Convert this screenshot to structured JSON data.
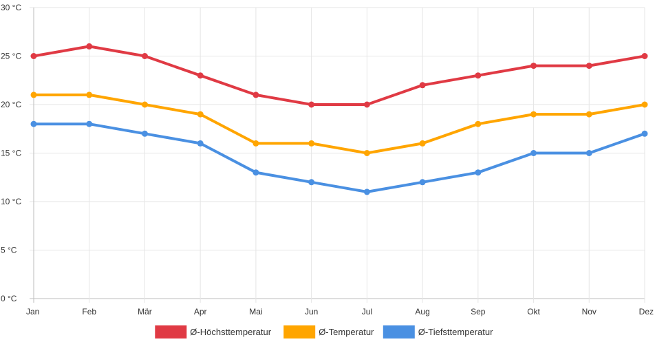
{
  "chart_data": {
    "type": "line",
    "title": "",
    "xlabel": "",
    "ylabel": "",
    "ylim": [
      0,
      30
    ],
    "yticks": [
      0,
      5,
      10,
      15,
      20,
      25,
      30
    ],
    "y_unit": " °C",
    "grid": true,
    "legend_position": "bottom",
    "categories": [
      "Jan",
      "Feb",
      "Mär",
      "Apr",
      "Mai",
      "Jun",
      "Jul",
      "Aug",
      "Sep",
      "Okt",
      "Nov",
      "Dez"
    ],
    "series": [
      {
        "name": "Ø-Höchsttemperatur",
        "color": "#e03a44",
        "values": [
          25,
          26,
          25,
          23,
          21,
          20,
          20,
          22,
          23,
          24,
          24,
          25
        ]
      },
      {
        "name": "Ø-Temperatur",
        "color": "#ffa500",
        "values": [
          21,
          21,
          20,
          19,
          16,
          16,
          15,
          16,
          18,
          19,
          19,
          20
        ]
      },
      {
        "name": "Ø-Tiefsttemperatur",
        "color": "#4a90e2",
        "values": [
          18,
          18,
          17,
          16,
          13,
          12,
          11,
          12,
          13,
          15,
          15,
          17
        ]
      }
    ]
  }
}
